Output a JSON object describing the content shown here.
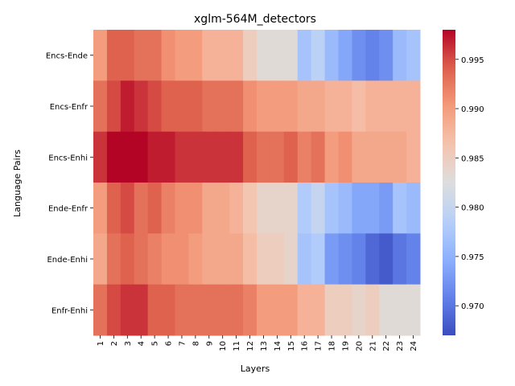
{
  "chart_data": {
    "type": "heatmap",
    "title": "xglm-564M_detectors",
    "xlabel": "Layers",
    "ylabel": "Language Pairs",
    "x_categories": [
      "1",
      "2",
      "3",
      "4",
      "5",
      "6",
      "7",
      "8",
      "9",
      "10",
      "11",
      "12",
      "13",
      "14",
      "15",
      "16",
      "17",
      "18",
      "19",
      "20",
      "21",
      "22",
      "23",
      "24"
    ],
    "y_categories": [
      "Encs-Ende",
      "Encs-Enfr",
      "Encs-Enhi",
      "Ende-Enfr",
      "Ende-Enhi",
      "Enfr-Enhi"
    ],
    "colormap": "coolwarm",
    "vmin": 0.967,
    "vmax": 0.998,
    "colorbar_ticks": [
      0.97,
      0.975,
      0.98,
      0.985,
      0.99,
      0.995
    ],
    "values": [
      [
        0.99,
        0.994,
        0.994,
        0.993,
        0.993,
        0.991,
        0.99,
        0.99,
        0.988,
        0.988,
        0.988,
        0.985,
        0.983,
        0.983,
        0.983,
        0.977,
        0.979,
        0.976,
        0.974,
        0.972,
        0.971,
        0.972,
        0.976,
        0.977
      ],
      [
        0.993,
        0.995,
        0.997,
        0.996,
        0.995,
        0.994,
        0.994,
        0.994,
        0.993,
        0.993,
        0.993,
        0.991,
        0.99,
        0.99,
        0.99,
        0.989,
        0.989,
        0.988,
        0.988,
        0.987,
        0.988,
        0.988,
        0.988,
        0.988
      ],
      [
        0.996,
        0.998,
        0.998,
        0.998,
        0.997,
        0.997,
        0.996,
        0.996,
        0.996,
        0.996,
        0.996,
        0.994,
        0.993,
        0.993,
        0.994,
        0.992,
        0.993,
        0.99,
        0.991,
        0.989,
        0.989,
        0.989,
        0.989,
        0.988
      ],
      [
        0.99,
        0.994,
        0.995,
        0.993,
        0.994,
        0.992,
        0.991,
        0.991,
        0.989,
        0.989,
        0.988,
        0.986,
        0.984,
        0.984,
        0.984,
        0.978,
        0.98,
        0.977,
        0.976,
        0.974,
        0.974,
        0.973,
        0.977,
        0.976
      ],
      [
        0.989,
        0.993,
        0.994,
        0.993,
        0.992,
        0.991,
        0.991,
        0.99,
        0.989,
        0.989,
        0.989,
        0.987,
        0.985,
        0.985,
        0.984,
        0.977,
        0.978,
        0.973,
        0.972,
        0.971,
        0.969,
        0.968,
        0.97,
        0.971
      ],
      [
        0.993,
        0.995,
        0.996,
        0.996,
        0.994,
        0.994,
        0.993,
        0.993,
        0.993,
        0.993,
        0.993,
        0.992,
        0.99,
        0.99,
        0.99,
        0.988,
        0.988,
        0.985,
        0.985,
        0.984,
        0.985,
        0.983,
        0.983,
        0.983
      ]
    ]
  }
}
